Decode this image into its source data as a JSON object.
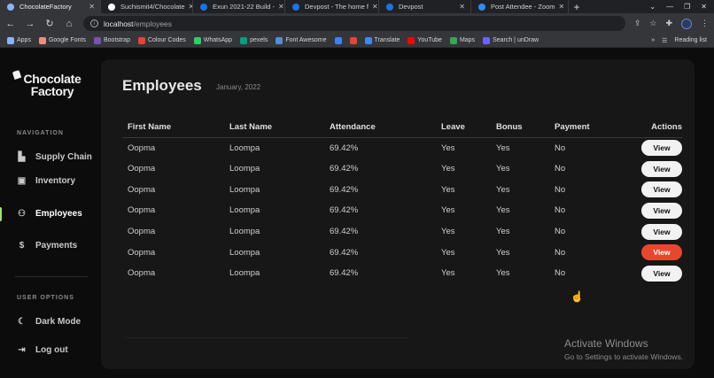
{
  "browser": {
    "tabs": [
      {
        "title": "ChocolateFactory",
        "active": true
      },
      {
        "title": "Suchismit4/Chocolate"
      },
      {
        "title": "Exun 2021-22 Build -"
      },
      {
        "title": "Devpost - The home f"
      },
      {
        "title": "Devpost"
      },
      {
        "title": "Post Attendee - Zoom"
      }
    ],
    "url_host": "localhost",
    "url_path": "/employees",
    "bookmarks": [
      {
        "label": "Apps",
        "color": "#8ab4f8"
      },
      {
        "label": "Google Fonts",
        "color": "#f28b82"
      },
      {
        "label": "Bootstrap",
        "color": "#7952b3"
      },
      {
        "label": "Colour Codes",
        "color": "#ea4335"
      },
      {
        "label": "WhatsApp",
        "color": "#25d366"
      },
      {
        "label": "pexels",
        "color": "#05a081"
      },
      {
        "label": "Font Awesome",
        "color": "#528dd7"
      },
      {
        "label": "",
        "color": "#3b82f6"
      },
      {
        "label": "",
        "color": "#ea4335"
      },
      {
        "label": "Translate",
        "color": "#4285f4"
      },
      {
        "label": "YouTube",
        "color": "#ff0000"
      },
      {
        "label": "Maps",
        "color": "#34a853"
      },
      {
        "label": "Search | unDraw",
        "color": "#6c63ff"
      }
    ],
    "reading_list": "Reading list"
  },
  "sidebar": {
    "logo_line1": "Chocolate",
    "logo_line2": "Factory",
    "nav_label": "NAVIGATION",
    "nav_items": [
      {
        "label": "Supply Chain",
        "icon": "truck-icon"
      },
      {
        "label": "Inventory",
        "icon": "box-icon"
      },
      {
        "label": "Employees",
        "icon": "users-icon",
        "active": true
      },
      {
        "label": "Payments",
        "icon": "dollar-icon"
      }
    ],
    "options_label": "USER OPTIONS",
    "option_items": [
      {
        "label": "Dark Mode",
        "icon": "moon-icon"
      },
      {
        "label": "Log out",
        "icon": "logout-icon"
      }
    ],
    "accent": "#9be36b"
  },
  "main": {
    "title": "Employees",
    "date": "January, 2022",
    "columns": [
      "First Name",
      "Last Name",
      "Attendance",
      "Leave",
      "Bonus",
      "Payment",
      "Actions"
    ],
    "rows": [
      [
        "Oopma",
        "Loompa",
        "69.42%",
        "Yes",
        "Yes",
        "No"
      ],
      [
        "Oopma",
        "Loompa",
        "69.42%",
        "Yes",
        "Yes",
        "No"
      ],
      [
        "Oopma",
        "Loompa",
        "69.42%",
        "Yes",
        "Yes",
        "No"
      ],
      [
        "Oopma",
        "Loompa",
        "69.42%",
        "Yes",
        "Yes",
        "No"
      ],
      [
        "Oopma",
        "Loompa",
        "69.42%",
        "Yes",
        "Yes",
        "No"
      ],
      [
        "Oopma",
        "Loompa",
        "69.42%",
        "Yes",
        "Yes",
        "No"
      ],
      [
        "Oopma",
        "Loompa",
        "69.42%",
        "Yes",
        "Yes",
        "No"
      ]
    ],
    "view_label": "View",
    "hover_color": "#e8472e"
  },
  "watermark": {
    "line1": "Activate Windows",
    "line2": "Go to Settings to activate Windows."
  }
}
